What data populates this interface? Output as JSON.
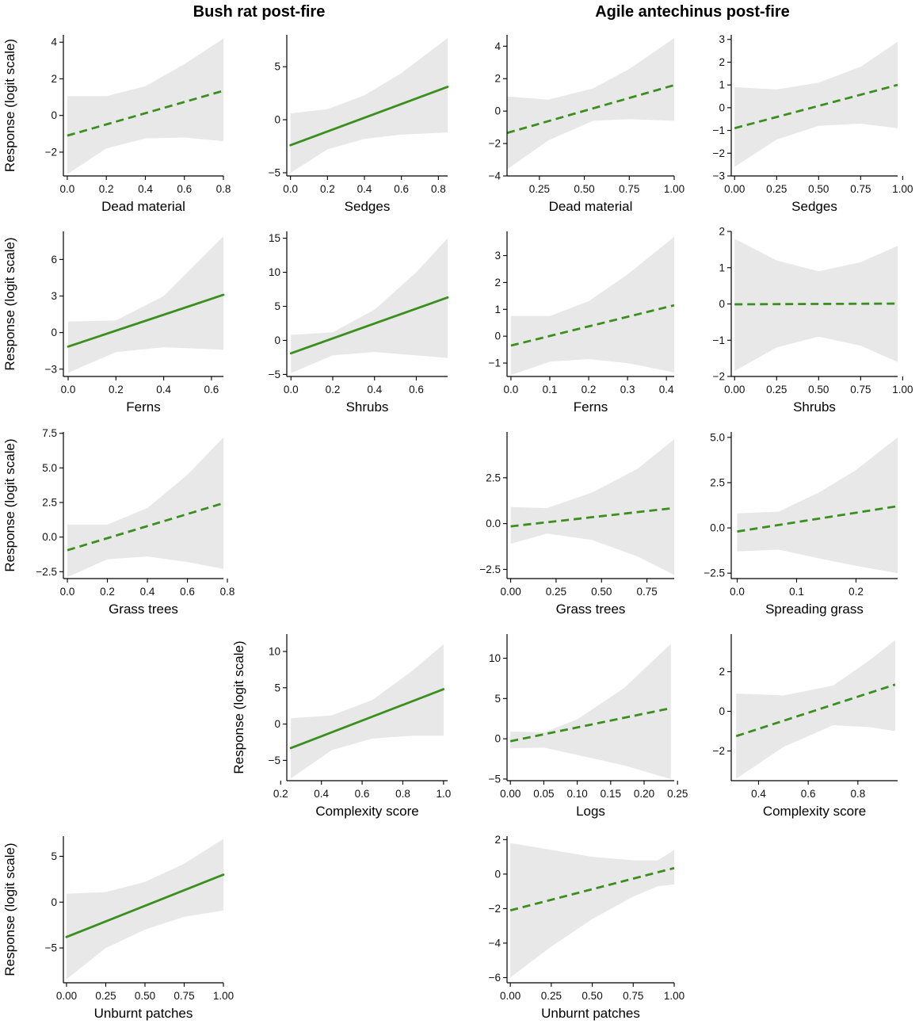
{
  "page": {
    "column_titles": [
      "Bush rat post-fire",
      "Agile antechinus post-fire"
    ]
  },
  "styles": {
    "line_color": "#3a8f1e",
    "band_color": "#e8e8e8",
    "axis_color": "#000000"
  },
  "chart_data": [
    {
      "type": "line",
      "panel": "bush-rat-dead-material",
      "col": 0,
      "row": 0,
      "title": "",
      "xlabel": "Dead material",
      "ylabel": "Response (logit scale)",
      "xticks": [
        0.0,
        0.2,
        0.4,
        0.6,
        0.8
      ],
      "xtick_labels": [
        "0.0",
        "0.2",
        "0.4",
        "0.6",
        "0.8"
      ],
      "xlim": [
        -0.02,
        0.8
      ],
      "yticks": [
        -2,
        0,
        2,
        4
      ],
      "ylim": [
        -3.3,
        4.4
      ],
      "x": [
        0.0,
        0.8
      ],
      "y": [
        -1.1,
        1.35
      ],
      "ci_x": [
        0.0,
        0.2,
        0.4,
        0.6,
        0.8
      ],
      "ci_lower": [
        -3.2,
        -1.8,
        -1.25,
        -1.2,
        -1.4
      ],
      "ci_upper": [
        1.05,
        1.05,
        1.6,
        2.8,
        4.2
      ],
      "linestyle": "dashed"
    },
    {
      "type": "line",
      "panel": "bush-rat-sedges",
      "col": 1,
      "row": 0,
      "title": "",
      "xlabel": "Sedges",
      "ylabel": "",
      "xticks": [
        0.0,
        0.2,
        0.4,
        0.6,
        0.8
      ],
      "xtick_labels": [
        "0.0",
        "0.2",
        "0.4",
        "0.6",
        "0.8"
      ],
      "xlim": [
        -0.02,
        0.85
      ],
      "yticks": [
        -5,
        0,
        5
      ],
      "ylim": [
        -5.3,
        8.0
      ],
      "x": [
        0.0,
        0.85
      ],
      "y": [
        -2.4,
        3.1
      ],
      "ci_x": [
        0.0,
        0.2,
        0.4,
        0.6,
        0.85
      ],
      "ci_lower": [
        -5.0,
        -2.8,
        -1.8,
        -1.4,
        -1.2
      ],
      "ci_upper": [
        0.6,
        1.0,
        2.3,
        4.4,
        7.7
      ],
      "linestyle": "solid"
    },
    {
      "type": "line",
      "panel": "antechinus-dead-material",
      "col": 2,
      "row": 0,
      "title": "",
      "xlabel": "Dead material",
      "ylabel": "",
      "xticks": [
        0.25,
        0.5,
        0.75,
        1.0
      ],
      "xtick_labels": [
        "0.25",
        "0.50",
        "0.75",
        "1.00"
      ],
      "xlim": [
        0.07,
        1.0
      ],
      "yticks": [
        -4,
        -2,
        0,
        2,
        4
      ],
      "ylim": [
        -4.0,
        4.7
      ],
      "x": [
        0.07,
        1.0
      ],
      "y": [
        -1.35,
        1.6
      ],
      "ci_x": [
        0.07,
        0.3,
        0.55,
        0.75,
        1.0
      ],
      "ci_lower": [
        -3.6,
        -1.8,
        -0.6,
        -0.5,
        -0.6
      ],
      "ci_upper": [
        0.9,
        0.7,
        1.4,
        2.6,
        4.5
      ],
      "linestyle": "dashed"
    },
    {
      "type": "line",
      "panel": "antechinus-sedges",
      "col": 3,
      "row": 0,
      "title": "",
      "xlabel": "Sedges",
      "ylabel": "",
      "xticks": [
        0.0,
        0.25,
        0.5,
        0.75,
        1.0
      ],
      "xtick_labels": [
        "0.00",
        "0.25",
        "0.50",
        "0.75",
        "1.00"
      ],
      "xlim": [
        -0.02,
        0.97
      ],
      "yticks": [
        -3,
        -2,
        -1,
        0,
        1,
        2,
        3
      ],
      "ylim": [
        -3.0,
        3.2
      ],
      "x": [
        0.0,
        0.97
      ],
      "y": [
        -0.9,
        1.0
      ],
      "ci_x": [
        0.0,
        0.25,
        0.5,
        0.75,
        0.97
      ],
      "ci_lower": [
        -2.6,
        -1.4,
        -0.8,
        -0.7,
        -0.9
      ],
      "ci_upper": [
        0.9,
        0.8,
        1.1,
        1.8,
        2.9
      ],
      "linestyle": "dashed"
    },
    {
      "type": "line",
      "panel": "bush-rat-ferns",
      "col": 0,
      "row": 1,
      "title": "",
      "xlabel": "Ferns",
      "ylabel": "Response (logit scale)",
      "xticks": [
        0.0,
        0.2,
        0.4,
        0.6
      ],
      "xtick_labels": [
        "0.0",
        "0.2",
        "0.4",
        "0.6"
      ],
      "xlim": [
        -0.02,
        0.65
      ],
      "yticks": [
        -3,
        0,
        3,
        6
      ],
      "ylim": [
        -3.6,
        8.3
      ],
      "x": [
        0.0,
        0.65
      ],
      "y": [
        -1.15,
        3.1
      ],
      "ci_x": [
        0.0,
        0.2,
        0.4,
        0.65
      ],
      "ci_lower": [
        -3.3,
        -1.6,
        -1.2,
        -1.4
      ],
      "ci_upper": [
        0.9,
        1.0,
        3.0,
        7.9
      ],
      "linestyle": "solid"
    },
    {
      "type": "line",
      "panel": "bush-rat-shrubs",
      "col": 1,
      "row": 1,
      "title": "",
      "xlabel": "Shrubs",
      "ylabel": "",
      "xticks": [
        0.0,
        0.2,
        0.4,
        0.6
      ],
      "xtick_labels": [
        "0.0",
        "0.2",
        "0.4",
        "0.6"
      ],
      "xlim": [
        -0.02,
        0.75
      ],
      "yticks": [
        -5,
        0,
        5,
        10,
        15
      ],
      "ylim": [
        -5.3,
        16.0
      ],
      "x": [
        0.0,
        0.75
      ],
      "y": [
        -1.9,
        6.3
      ],
      "ci_x": [
        0.0,
        0.2,
        0.4,
        0.6,
        0.75
      ],
      "ci_lower": [
        -4.8,
        -2.2,
        -1.7,
        -2.2,
        -2.6
      ],
      "ci_upper": [
        0.8,
        1.2,
        4.5,
        10.0,
        15.0
      ],
      "linestyle": "solid"
    },
    {
      "type": "line",
      "panel": "antechinus-ferns",
      "col": 2,
      "row": 1,
      "title": "",
      "xlabel": "Ferns",
      "ylabel": "",
      "xticks": [
        0.0,
        0.1,
        0.2,
        0.3,
        0.4
      ],
      "xtick_labels": [
        "0.0",
        "0.1",
        "0.2",
        "0.3",
        "0.4"
      ],
      "xlim": [
        -0.01,
        0.42
      ],
      "yticks": [
        -1,
        0,
        1,
        2,
        3
      ],
      "ylim": [
        -1.5,
        3.9
      ],
      "x": [
        0.0,
        0.42
      ],
      "y": [
        -0.35,
        1.15
      ],
      "ci_x": [
        0.0,
        0.1,
        0.2,
        0.3,
        0.42
      ],
      "ci_lower": [
        -1.45,
        -0.95,
        -0.85,
        -1.0,
        -1.35
      ],
      "ci_upper": [
        0.75,
        0.75,
        1.3,
        2.3,
        3.7
      ],
      "linestyle": "dashed"
    },
    {
      "type": "line",
      "panel": "antechinus-shrubs",
      "col": 3,
      "row": 1,
      "title": "",
      "xlabel": "Shrubs",
      "ylabel": "",
      "xticks": [
        0.0,
        0.25,
        0.5,
        0.75,
        1.0
      ],
      "xtick_labels": [
        "0.00",
        "0.25",
        "0.50",
        "0.75",
        "1.00"
      ],
      "xlim": [
        -0.02,
        0.97
      ],
      "yticks": [
        -2,
        -1,
        0,
        1,
        2
      ],
      "ylim": [
        -2.0,
        2.0
      ],
      "x": [
        0.0,
        0.97
      ],
      "y": [
        -0.01,
        0.01
      ],
      "ci_x": [
        0.0,
        0.25,
        0.5,
        0.75,
        0.97
      ],
      "ci_lower": [
        -1.85,
        -1.2,
        -0.9,
        -1.15,
        -1.6
      ],
      "ci_upper": [
        1.8,
        1.2,
        0.9,
        1.15,
        1.6
      ],
      "linestyle": "dashed"
    },
    {
      "type": "line",
      "panel": "bush-rat-grass-trees",
      "col": 0,
      "row": 2,
      "title": "",
      "xlabel": "Grass trees",
      "ylabel": "Response (logit scale)",
      "xticks": [
        0.0,
        0.2,
        0.4,
        0.6,
        0.8
      ],
      "xtick_labels": [
        "0.0",
        "0.2",
        "0.4",
        "0.6",
        "0.8"
      ],
      "xlim": [
        -0.02,
        0.78
      ],
      "yticks": [
        -2.5,
        0.0,
        2.5,
        5.0,
        7.5
      ],
      "ylim": [
        -3.0,
        7.6
      ],
      "x": [
        0.0,
        0.78
      ],
      "y": [
        -0.95,
        2.45
      ],
      "ci_x": [
        0.0,
        0.2,
        0.4,
        0.6,
        0.78
      ],
      "ci_lower": [
        -2.9,
        -1.6,
        -1.4,
        -1.8,
        -2.3
      ],
      "ci_upper": [
        0.9,
        0.9,
        2.1,
        4.5,
        7.2
      ],
      "linestyle": "dashed"
    },
    {
      "type": "line",
      "panel": "antechinus-grass-trees",
      "col": 2,
      "row": 2,
      "title": "",
      "xlabel": "Grass trees",
      "ylabel": "",
      "xticks": [
        0.0,
        0.25,
        0.5,
        0.75
      ],
      "xtick_labels": [
        "0.00",
        "0.25",
        "0.50",
        "0.75"
      ],
      "xlim": [
        -0.02,
        0.9
      ],
      "yticks": [
        -2.5,
        0.0,
        2.5
      ],
      "ylim": [
        -3.0,
        5.0
      ],
      "x": [
        0.0,
        0.9
      ],
      "y": [
        -0.15,
        0.85
      ],
      "ci_x": [
        0.0,
        0.2,
        0.45,
        0.7,
        0.9
      ],
      "ci_lower": [
        -1.1,
        -0.55,
        -0.9,
        -1.8,
        -2.8
      ],
      "ci_upper": [
        0.9,
        0.85,
        1.7,
        3.0,
        4.6
      ],
      "linestyle": "dashed"
    },
    {
      "type": "line",
      "panel": "antechinus-spreading-grass",
      "col": 3,
      "row": 2,
      "title": "",
      "xlabel": "Spreading grass",
      "ylabel": "",
      "xticks": [
        0.0,
        0.1,
        0.2
      ],
      "xtick_labels": [
        "0.0",
        "0.1",
        "0.2"
      ],
      "xlim": [
        -0.01,
        0.27
      ],
      "yticks": [
        -2.5,
        0.0,
        2.5,
        5.0
      ],
      "ylim": [
        -2.8,
        5.3
      ],
      "x": [
        0.0,
        0.27
      ],
      "y": [
        -0.2,
        1.2
      ],
      "ci_x": [
        0.0,
        0.07,
        0.14,
        0.2,
        0.27
      ],
      "ci_lower": [
        -1.3,
        -1.2,
        -1.7,
        -2.1,
        -2.5
      ],
      "ci_upper": [
        0.8,
        0.9,
        2.0,
        3.2,
        5.0
      ],
      "linestyle": "dashed"
    },
    {
      "type": "line",
      "panel": "bush-rat-complexity-score",
      "col": 1,
      "row": 3,
      "title": "",
      "xlabel": "Complexity score",
      "ylabel": "Response (logit scale)",
      "xticks": [
        0.2,
        0.4,
        0.6,
        0.8,
        1.0
      ],
      "xtick_labels": [
        "0.2",
        "0.4",
        "0.6",
        "0.8",
        "1.0"
      ],
      "xlim": [
        0.23,
        1.02
      ],
      "yticks": [
        -5,
        0,
        5,
        10
      ],
      "ylim": [
        -7.8,
        12.4
      ],
      "x": [
        0.25,
        1.0
      ],
      "y": [
        -3.3,
        4.8
      ],
      "ci_x": [
        0.25,
        0.45,
        0.65,
        0.85,
        1.0
      ],
      "ci_lower": [
        -7.5,
        -3.6,
        -2.0,
        -1.6,
        -1.6
      ],
      "ci_upper": [
        0.8,
        1.2,
        3.3,
        7.4,
        11.0
      ],
      "linestyle": "solid"
    },
    {
      "type": "line",
      "panel": "antechinus-logs",
      "col": 2,
      "row": 3,
      "title": "",
      "xlabel": "Logs",
      "ylabel": "",
      "xticks": [
        0.0,
        0.05,
        0.1,
        0.15,
        0.2,
        0.25
      ],
      "xtick_labels": [
        "0.00",
        "0.05",
        "0.10",
        "0.15",
        "0.20",
        "0.25"
      ],
      "xlim": [
        -0.005,
        0.245
      ],
      "yticks": [
        -5,
        0,
        5,
        10
      ],
      "ylim": [
        -5.2,
        13.0
      ],
      "x": [
        0.0,
        0.24
      ],
      "y": [
        -0.3,
        3.8
      ],
      "ci_x": [
        0.0,
        0.05,
        0.1,
        0.17,
        0.24
      ],
      "ci_lower": [
        -1.2,
        -1.1,
        -2.0,
        -3.3,
        -5.0
      ],
      "ci_upper": [
        0.9,
        0.8,
        2.4,
        6.3,
        11.8
      ],
      "linestyle": "dashed"
    },
    {
      "type": "line",
      "panel": "antechinus-complexity-score",
      "col": 3,
      "row": 3,
      "title": "",
      "xlabel": "Complexity score",
      "ylabel": "",
      "xticks": [
        0.4,
        0.6,
        0.8
      ],
      "xtick_labels": [
        "0.4",
        "0.6",
        "0.8"
      ],
      "xlim": [
        0.29,
        0.96
      ],
      "yticks": [
        -2,
        0,
        2
      ],
      "ylim": [
        -3.5,
        3.9
      ],
      "x": [
        0.31,
        0.95
      ],
      "y": [
        -1.25,
        1.35
      ],
      "ci_x": [
        0.31,
        0.5,
        0.7,
        0.85,
        0.95
      ],
      "ci_lower": [
        -3.4,
        -1.8,
        -0.7,
        -0.8,
        -1.0
      ],
      "ci_upper": [
        0.9,
        0.8,
        1.3,
        2.6,
        3.6
      ],
      "linestyle": "dashed"
    },
    {
      "type": "line",
      "panel": "bush-rat-unburnt-patches",
      "col": 0,
      "row": 4,
      "title": "",
      "xlabel": "Unburnt patches",
      "ylabel": "Response (logit scale)",
      "xticks": [
        0.0,
        0.25,
        0.5,
        0.75,
        1.0
      ],
      "xtick_labels": [
        "0.00",
        "0.25",
        "0.50",
        "0.75",
        "1.00"
      ],
      "xlim": [
        -0.02,
        1.0
      ],
      "yticks": [
        -5,
        0,
        5
      ],
      "ylim": [
        -8.8,
        7.2
      ],
      "x": [
        0.0,
        1.0
      ],
      "y": [
        -3.8,
        3.0
      ],
      "ci_x": [
        0.0,
        0.25,
        0.5,
        0.75,
        1.0
      ],
      "ci_lower": [
        -8.4,
        -5.0,
        -3.0,
        -1.6,
        -0.9
      ],
      "ci_upper": [
        0.9,
        1.1,
        2.2,
        4.2,
        6.9
      ],
      "linestyle": "solid"
    },
    {
      "type": "line",
      "panel": "antechinus-unburnt-patches",
      "col": 2,
      "row": 4,
      "title": "",
      "xlabel": "Unburnt patches",
      "ylabel": "",
      "xticks": [
        0.0,
        0.25,
        0.5,
        0.75,
        1.0
      ],
      "xtick_labels": [
        "0.00",
        "0.25",
        "0.50",
        "0.75",
        "1.00"
      ],
      "xlim": [
        -0.02,
        1.0
      ],
      "yticks": [
        -6,
        -4,
        -2,
        0,
        2
      ],
      "ylim": [
        -6.3,
        2.2
      ],
      "x": [
        0.0,
        1.0
      ],
      "y": [
        -2.1,
        0.35
      ],
      "ci_x": [
        0.0,
        0.25,
        0.5,
        0.75,
        0.9,
        1.0
      ],
      "ci_lower": [
        -6.0,
        -4.2,
        -2.6,
        -1.3,
        -0.7,
        -0.6
      ],
      "ci_upper": [
        1.8,
        1.4,
        1.0,
        0.8,
        0.8,
        1.4
      ],
      "linestyle": "dashed"
    }
  ]
}
